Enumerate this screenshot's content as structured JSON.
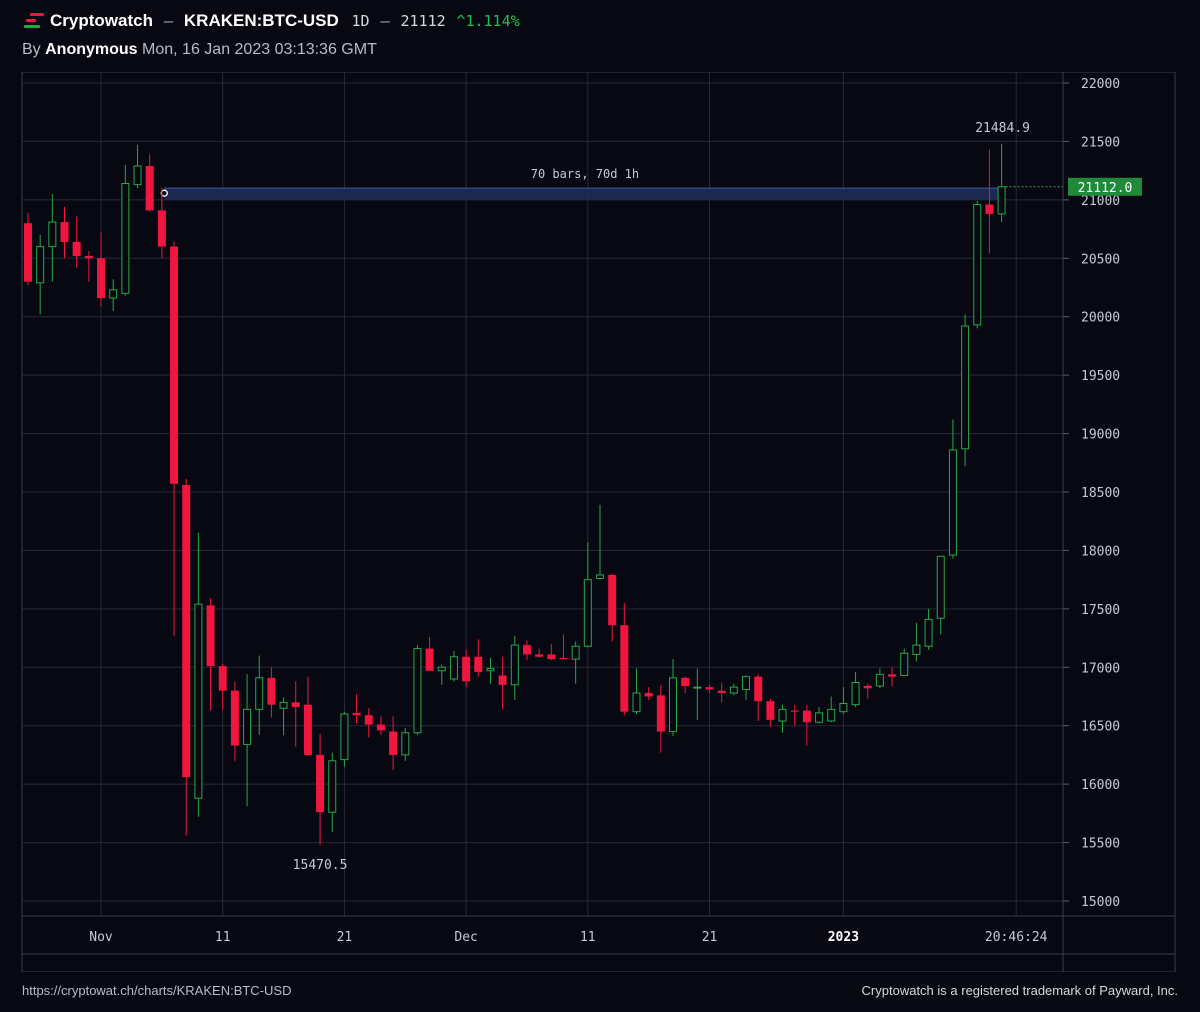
{
  "header": {
    "brand": "Cryptowatch",
    "separator": "–",
    "pair": "KRAKEN:BTC-USD",
    "interval": "1D",
    "price": "21112",
    "change": "^1.114%",
    "by_prefix": "By",
    "author": "Anonymous",
    "timestamp": "Mon, 16 Jan 2023 03:13:36 GMT"
  },
  "footer": {
    "url": "https://cryptowat.ch/charts/KRAKEN:BTC-USD",
    "trademark": "Cryptowatch is a registered trademark of Payward, Inc."
  },
  "colors": {
    "up": "#26a845",
    "down": "#f0163f",
    "background": "#070812",
    "grid": "#262938",
    "price_tag": "#1f8a3a",
    "measure_band": "#1e2e5a"
  },
  "chart_data": {
    "type": "candlestick",
    "ylim": [
      15000,
      22000
    ],
    "yticks": [
      15000,
      15500,
      16000,
      16500,
      17000,
      17500,
      18000,
      18500,
      19000,
      19500,
      20000,
      20500,
      21000,
      21500,
      22000
    ],
    "x_ticks": [
      {
        "label": "Nov",
        "index": 6,
        "bold": false
      },
      {
        "label": "11",
        "index": 16,
        "bold": false
      },
      {
        "label": "21",
        "index": 26,
        "bold": false
      },
      {
        "label": "Dec",
        "index": 36,
        "bold": false
      },
      {
        "label": "11",
        "index": 46,
        "bold": false
      },
      {
        "label": "21",
        "index": 56,
        "bold": false
      },
      {
        "label": "2023",
        "index": 67,
        "bold": true
      },
      {
        "label": "20:46:24",
        "index": 81.2,
        "bold": false
      }
    ],
    "last_price_label": "21112.0",
    "annotations": {
      "high_label": "21484.9",
      "low_label": "15470.5",
      "measure_label": "70 bars, 70d 1h",
      "measure_range": [
        21000,
        21100
      ],
      "measure_start_index": 11.2
    },
    "candles": [
      [
        20800,
        20890,
        20270,
        20300
      ],
      [
        20290,
        20700,
        20020,
        20600
      ],
      [
        20600,
        21050,
        20300,
        20810
      ],
      [
        20810,
        20940,
        20500,
        20640
      ],
      [
        20640,
        20860,
        20420,
        20520
      ],
      [
        20520,
        20560,
        20300,
        20500
      ],
      [
        20500,
        20720,
        20090,
        20160
      ],
      [
        20160,
        20320,
        20050,
        20230
      ],
      [
        20200,
        21300,
        20180,
        21140
      ],
      [
        21130,
        21470,
        21100,
        21290
      ],
      [
        21290,
        21390,
        20900,
        20910
      ],
      [
        20910,
        21100,
        20500,
        20600
      ],
      [
        20600,
        20640,
        17270,
        18570
      ],
      [
        18560,
        18610,
        15560,
        16060
      ],
      [
        15880,
        18150,
        15720,
        17540
      ],
      [
        17530,
        17590,
        16630,
        17010
      ],
      [
        17010,
        17030,
        16640,
        16800
      ],
      [
        16800,
        16880,
        16200,
        16330
      ],
      [
        16340,
        16940,
        15810,
        16640
      ],
      [
        16640,
        17100,
        16420,
        16910
      ],
      [
        16910,
        17000,
        16570,
        16680
      ],
      [
        16650,
        16740,
        16420,
        16700
      ],
      [
        16700,
        16880,
        16320,
        16660
      ],
      [
        16680,
        16920,
        16240,
        16250
      ],
      [
        16250,
        16430,
        15480,
        15760
      ],
      [
        15760,
        16270,
        15590,
        16200
      ],
      [
        16210,
        16620,
        16150,
        16600
      ],
      [
        16610,
        16770,
        16520,
        16590
      ],
      [
        16590,
        16650,
        16400,
        16510
      ],
      [
        16510,
        16580,
        16420,
        16460
      ],
      [
        16450,
        16580,
        16120,
        16250
      ],
      [
        16250,
        16480,
        16200,
        16440
      ],
      [
        16440,
        17190,
        16420,
        17160
      ],
      [
        17160,
        17260,
        16980,
        16970
      ],
      [
        16970,
        17020,
        16850,
        17000
      ],
      [
        16900,
        17140,
        16880,
        17090
      ],
      [
        17090,
        17150,
        16830,
        16880
      ],
      [
        17090,
        17240,
        16920,
        16960
      ],
      [
        16970,
        17080,
        16860,
        16990
      ],
      [
        16930,
        17090,
        16640,
        16850
      ],
      [
        16850,
        17270,
        16720,
        17190
      ],
      [
        17190,
        17230,
        17060,
        17110
      ],
      [
        17110,
        17160,
        17080,
        17090
      ],
      [
        17110,
        17200,
        17060,
        17070
      ],
      [
        17080,
        17280,
        17070,
        17070
      ],
      [
        17070,
        17220,
        16860,
        17180
      ],
      [
        17180,
        18070,
        17170,
        17750
      ],
      [
        17760,
        18390,
        17750,
        17790
      ],
      [
        17790,
        17800,
        17220,
        17360
      ],
      [
        17360,
        17550,
        16590,
        16620
      ],
      [
        16620,
        16990,
        16600,
        16780
      ],
      [
        16780,
        16830,
        16720,
        16750
      ],
      [
        16760,
        16850,
        16270,
        16450
      ],
      [
        16450,
        17070,
        16410,
        16910
      ],
      [
        16910,
        16920,
        16780,
        16840
      ],
      [
        16830,
        16990,
        16550,
        16830
      ],
      [
        16830,
        16850,
        16780,
        16810
      ],
      [
        16800,
        16870,
        16700,
        16780
      ],
      [
        16780,
        16860,
        16760,
        16830
      ],
      [
        16810,
        16930,
        16720,
        16920
      ],
      [
        16920,
        16940,
        16540,
        16710
      ],
      [
        16710,
        16730,
        16490,
        16550
      ],
      [
        16540,
        16680,
        16440,
        16640
      ],
      [
        16630,
        16680,
        16500,
        16620
      ],
      [
        16630,
        16680,
        16330,
        16530
      ],
      [
        16530,
        16660,
        16520,
        16610
      ],
      [
        16540,
        16750,
        16530,
        16640
      ],
      [
        16620,
        16830,
        16600,
        16690
      ],
      [
        16680,
        16960,
        16660,
        16870
      ],
      [
        16840,
        16860,
        16730,
        16820
      ],
      [
        16840,
        16990,
        16820,
        16940
      ],
      [
        16940,
        17000,
        16840,
        16920
      ],
      [
        16930,
        17160,
        16930,
        17120
      ],
      [
        17110,
        17380,
        17050,
        17190
      ],
      [
        17180,
        17500,
        17150,
        17410
      ],
      [
        17420,
        17950,
        17280,
        17950
      ],
      [
        17960,
        19120,
        17930,
        18860
      ],
      [
        18870,
        20020,
        18720,
        19920
      ],
      [
        19930,
        20990,
        19900,
        20960
      ],
      [
        20960,
        21430,
        20540,
        20880
      ],
      [
        20880,
        21480,
        20810,
        21112
      ]
    ]
  }
}
